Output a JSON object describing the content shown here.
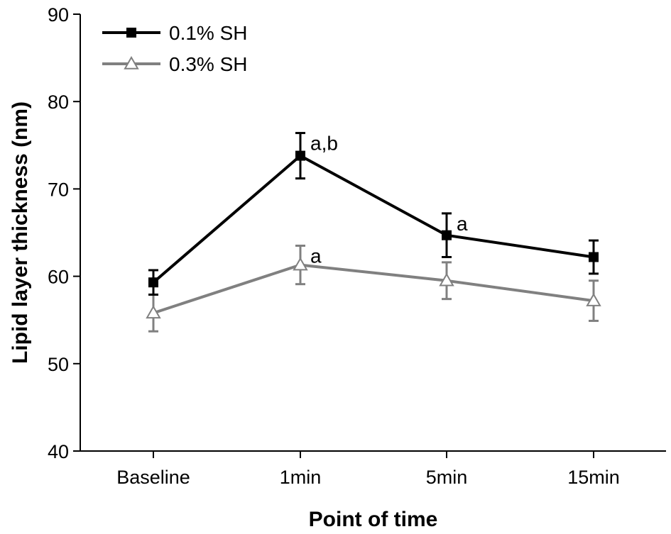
{
  "chart_data": {
    "type": "line",
    "title": "",
    "xlabel": "Point of time",
    "ylabel": "Lipid layer thickness (nm)",
    "categories": [
      "Baseline",
      "1min",
      "5min",
      "15min"
    ],
    "ylim": [
      40,
      90
    ],
    "yticks": [
      40,
      50,
      60,
      70,
      80,
      90
    ],
    "grid": false,
    "legend_position": "top-left",
    "series": [
      {
        "name": "0.1% SH",
        "color": "#000000",
        "marker": "filled-square",
        "values": [
          59.3,
          73.8,
          64.7,
          62.2
        ],
        "error": [
          1.4,
          2.6,
          2.5,
          1.9
        ],
        "annotations": [
          "",
          "a,b",
          "a",
          ""
        ]
      },
      {
        "name": "0.3% SH",
        "color": "#808080",
        "marker": "open-triangle",
        "values": [
          55.8,
          61.3,
          59.5,
          57.2
        ],
        "error": [
          2.1,
          2.2,
          2.1,
          2.3
        ],
        "annotations": [
          "",
          "a",
          "",
          ""
        ]
      }
    ]
  }
}
